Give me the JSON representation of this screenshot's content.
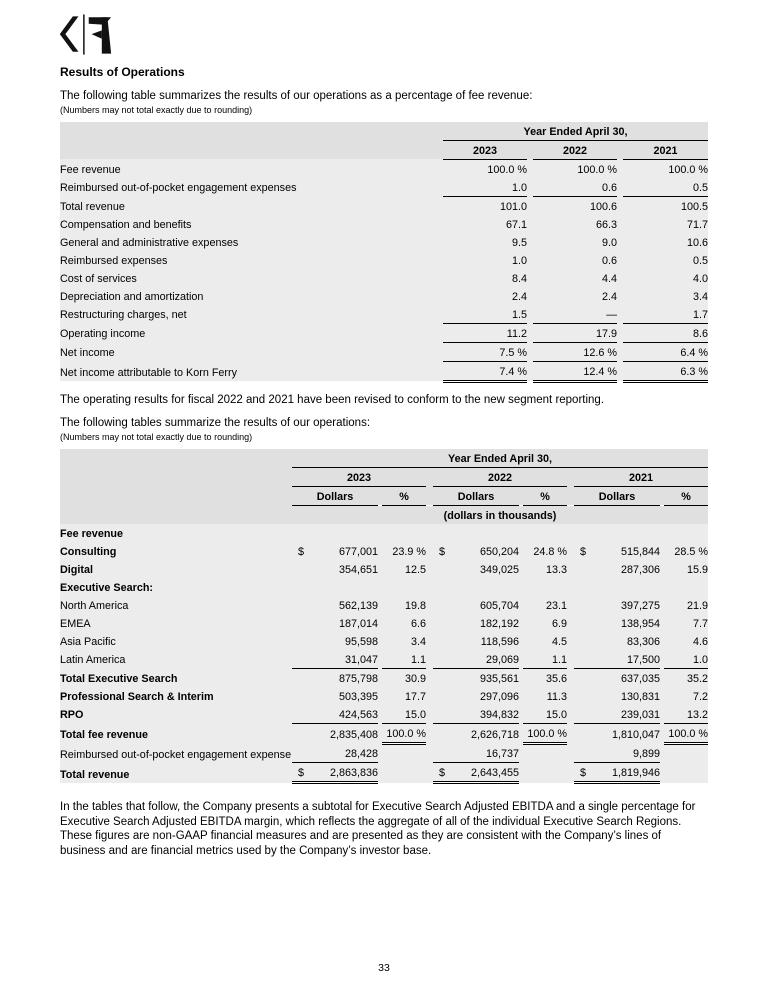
{
  "colors": {
    "header_band": "#e0e0e0",
    "body_band": "#ececec",
    "text": "#000000"
  },
  "page": {
    "heading": "Results of Operations",
    "para1": "The following table summarizes the results of our operations as a percentage of fee revenue:",
    "note1": "(Numbers may not total exactly due to rounding)",
    "para2": "The operating results for fiscal 2022 and 2021 have been revised to conform to the new segment reporting.",
    "para3": "The following tables summarize the results of our operations:",
    "note2": "(Numbers may not total exactly due to rounding)",
    "para4": "In the tables that follow, the Company presents a subtotal for Executive Search Adjusted EBITDA and a single percentage for Executive Search Adjusted EBITDA margin, which reflects the aggregate of all of the individual Executive Search Regions. These figures are non-GAAP financial measures and are presented as they are consistent with the Company’s lines of business and are financial metrics used by the Company’s investor base.",
    "page_number": "33"
  },
  "logo": {
    "name": "korn-ferry-monogram"
  },
  "table1": {
    "title": "Year Ended April 30,",
    "years": [
      "2023",
      "2022",
      "2021"
    ],
    "rows": [
      {
        "label": "Fee revenue",
        "indent": 0,
        "values": [
          "100.0 %",
          "100.0 %",
          "100.0 %"
        ],
        "borders": [
          "",
          "",
          ""
        ]
      },
      {
        "label": "Reimbursed out-of-pocket engagement expenses",
        "indent": 0,
        "values": [
          "1.0",
          "0.6",
          "0.5"
        ],
        "borders": [
          "b",
          "b",
          "b"
        ]
      },
      {
        "label": "Total revenue",
        "indent": 1,
        "values": [
          "101.0",
          "100.6",
          "100.5"
        ],
        "borders": [
          "",
          "",
          ""
        ]
      },
      {
        "label": "Compensation and benefits",
        "indent": 0,
        "values": [
          "67.1",
          "66.3",
          "71.7"
        ],
        "borders": [
          "",
          "",
          ""
        ]
      },
      {
        "label": "General and administrative expenses",
        "indent": 0,
        "values": [
          "9.5",
          "9.0",
          "10.6"
        ],
        "borders": [
          "",
          "",
          ""
        ]
      },
      {
        "label": "Reimbursed expenses",
        "indent": 0,
        "values": [
          "1.0",
          "0.6",
          "0.5"
        ],
        "borders": [
          "",
          "",
          ""
        ]
      },
      {
        "label": "Cost of services",
        "indent": 0,
        "values": [
          "8.4",
          "4.4",
          "4.0"
        ],
        "borders": [
          "",
          "",
          ""
        ]
      },
      {
        "label": "Depreciation and amortization",
        "indent": 0,
        "values": [
          "2.4",
          "2.4",
          "3.4"
        ],
        "borders": [
          "",
          "",
          ""
        ]
      },
      {
        "label": "Restructuring charges, net",
        "indent": 0,
        "values": [
          "1.5",
          "—",
          "1.7"
        ],
        "borders": [
          "b",
          "b",
          "b"
        ]
      },
      {
        "label": "Operating income",
        "indent": 1,
        "values": [
          "11.2",
          "17.9",
          "8.6"
        ],
        "borders": [
          "b",
          "b",
          "b"
        ]
      },
      {
        "label": "Net income",
        "indent": 1,
        "values": [
          "7.5 %",
          "12.6 %",
          "6.4 %"
        ],
        "borders": [
          "b",
          "b",
          "b"
        ]
      },
      {
        "label": "Net income attributable to Korn Ferry",
        "indent": 1,
        "values": [
          "7.4 %",
          "12.4 %",
          "6.3 %"
        ],
        "borders": [
          "d",
          "d",
          "d"
        ]
      }
    ]
  },
  "table2": {
    "title": "Year Ended April 30,",
    "years": [
      "2023",
      "2022",
      "2021"
    ],
    "col_headers": [
      "Dollars",
      "%"
    ],
    "units_note": "(dollars in thousands)",
    "rows": [
      {
        "label": "Fee revenue",
        "bold": true,
        "indent": 0,
        "cells": [
          [
            "",
            ""
          ],
          [
            "",
            ""
          ],
          [
            "",
            ""
          ],
          [
            "",
            ""
          ],
          [
            "",
            ""
          ],
          [
            "",
            ""
          ]
        ],
        "borders": [
          "",
          "",
          "",
          "",
          "",
          ""
        ]
      },
      {
        "label": "Consulting",
        "bold": true,
        "indent": 0,
        "cells": [
          [
            "$",
            "677,001"
          ],
          [
            "",
            "23.9 %"
          ],
          [
            "$",
            "650,204"
          ],
          [
            "",
            "24.8 %"
          ],
          [
            "$",
            "515,844"
          ],
          [
            "",
            "28.5 %"
          ]
        ],
        "borders": [
          "",
          "",
          "",
          "",
          "",
          ""
        ]
      },
      {
        "label": "Digital",
        "bold": true,
        "indent": 0,
        "cells": [
          [
            "",
            "354,651"
          ],
          [
            "",
            "12.5"
          ],
          [
            "",
            "349,025"
          ],
          [
            "",
            "13.3"
          ],
          [
            "",
            "287,306"
          ],
          [
            "",
            "15.9"
          ]
        ],
        "borders": [
          "",
          "",
          "",
          "",
          "",
          ""
        ]
      },
      {
        "label": "Executive Search:",
        "bold": true,
        "indent": 0,
        "cells": [
          [
            "",
            ""
          ],
          [
            "",
            ""
          ],
          [
            "",
            ""
          ],
          [
            "",
            ""
          ],
          [
            "",
            ""
          ],
          [
            "",
            ""
          ]
        ],
        "borders": [
          "",
          "",
          "",
          "",
          "",
          ""
        ]
      },
      {
        "label": "North America",
        "bold": false,
        "indent": 1,
        "cells": [
          [
            "",
            "562,139"
          ],
          [
            "",
            "19.8"
          ],
          [
            "",
            "605,704"
          ],
          [
            "",
            "23.1"
          ],
          [
            "",
            "397,275"
          ],
          [
            "",
            "21.9"
          ]
        ],
        "borders": [
          "",
          "",
          "",
          "",
          "",
          ""
        ]
      },
      {
        "label": "EMEA",
        "bold": false,
        "indent": 1,
        "cells": [
          [
            "",
            "187,014"
          ],
          [
            "",
            "6.6"
          ],
          [
            "",
            "182,192"
          ],
          [
            "",
            "6.9"
          ],
          [
            "",
            "138,954"
          ],
          [
            "",
            "7.7"
          ]
        ],
        "borders": [
          "",
          "",
          "",
          "",
          "",
          ""
        ]
      },
      {
        "label": "Asia Pacific",
        "bold": false,
        "indent": 1,
        "cells": [
          [
            "",
            "95,598"
          ],
          [
            "",
            "3.4"
          ],
          [
            "",
            "118,596"
          ],
          [
            "",
            "4.5"
          ],
          [
            "",
            "83,306"
          ],
          [
            "",
            "4.6"
          ]
        ],
        "borders": [
          "",
          "",
          "",
          "",
          "",
          ""
        ]
      },
      {
        "label": "Latin America",
        "bold": false,
        "indent": 1,
        "cells": [
          [
            "",
            "31,047"
          ],
          [
            "",
            "1.1"
          ],
          [
            "",
            "29,069"
          ],
          [
            "",
            "1.1"
          ],
          [
            "",
            "17,500"
          ],
          [
            "",
            "1.0"
          ]
        ],
        "borders": [
          "b",
          "b",
          "b",
          "b",
          "b",
          "b"
        ]
      },
      {
        "label": "Total Executive Search",
        "bold": true,
        "indent": 2,
        "cells": [
          [
            "",
            "875,798"
          ],
          [
            "",
            "30.9"
          ],
          [
            "",
            "935,561"
          ],
          [
            "",
            "35.6"
          ],
          [
            "",
            "637,035"
          ],
          [
            "",
            "35.2"
          ]
        ],
        "borders": [
          "",
          "",
          "",
          "",
          "",
          ""
        ]
      },
      {
        "label": "Professional Search & Interim",
        "bold": true,
        "indent": 0,
        "cells": [
          [
            "",
            "503,395"
          ],
          [
            "",
            "17.7"
          ],
          [
            "",
            "297,096"
          ],
          [
            "",
            "11.3"
          ],
          [
            "",
            "130,831"
          ],
          [
            "",
            "7.2"
          ]
        ],
        "borders": [
          "",
          "",
          "",
          "",
          "",
          ""
        ]
      },
      {
        "label": "RPO",
        "bold": true,
        "indent": 0,
        "cells": [
          [
            "",
            "424,563"
          ],
          [
            "",
            "15.0"
          ],
          [
            "",
            "394,832"
          ],
          [
            "",
            "15.0"
          ],
          [
            "",
            "239,031"
          ],
          [
            "",
            "13.2"
          ]
        ],
        "borders": [
          "b",
          "b",
          "b",
          "b",
          "b",
          "b"
        ]
      },
      {
        "label": "Total fee revenue",
        "bold": true,
        "indent": 2,
        "cells": [
          [
            "",
            "2,835,408"
          ],
          [
            "",
            "100.0 %"
          ],
          [
            "",
            "2,626,718"
          ],
          [
            "",
            "100.0 %"
          ],
          [
            "",
            "1,810,047"
          ],
          [
            "",
            "100.0 %"
          ]
        ],
        "borders": [
          "",
          "d",
          "",
          "d",
          "",
          "d"
        ]
      },
      {
        "label": "Reimbursed out-of-pocket engagement expense",
        "bold": false,
        "indent": 0,
        "cells": [
          [
            "",
            "28,428"
          ],
          [
            "",
            ""
          ],
          [
            "",
            "16,737"
          ],
          [
            "",
            ""
          ],
          [
            "",
            "9,899"
          ],
          [
            "",
            ""
          ]
        ],
        "borders": [
          "b",
          "",
          "b",
          "",
          "b",
          ""
        ]
      },
      {
        "label": "Total revenue",
        "bold": true,
        "indent": 2,
        "cells": [
          [
            "$",
            "2,863,836"
          ],
          [
            "",
            ""
          ],
          [
            "$",
            "2,643,455"
          ],
          [
            "",
            ""
          ],
          [
            "$",
            "1,819,946"
          ],
          [
            "",
            ""
          ]
        ],
        "borders": [
          "d",
          "",
          "d",
          "",
          "d",
          ""
        ]
      }
    ]
  }
}
